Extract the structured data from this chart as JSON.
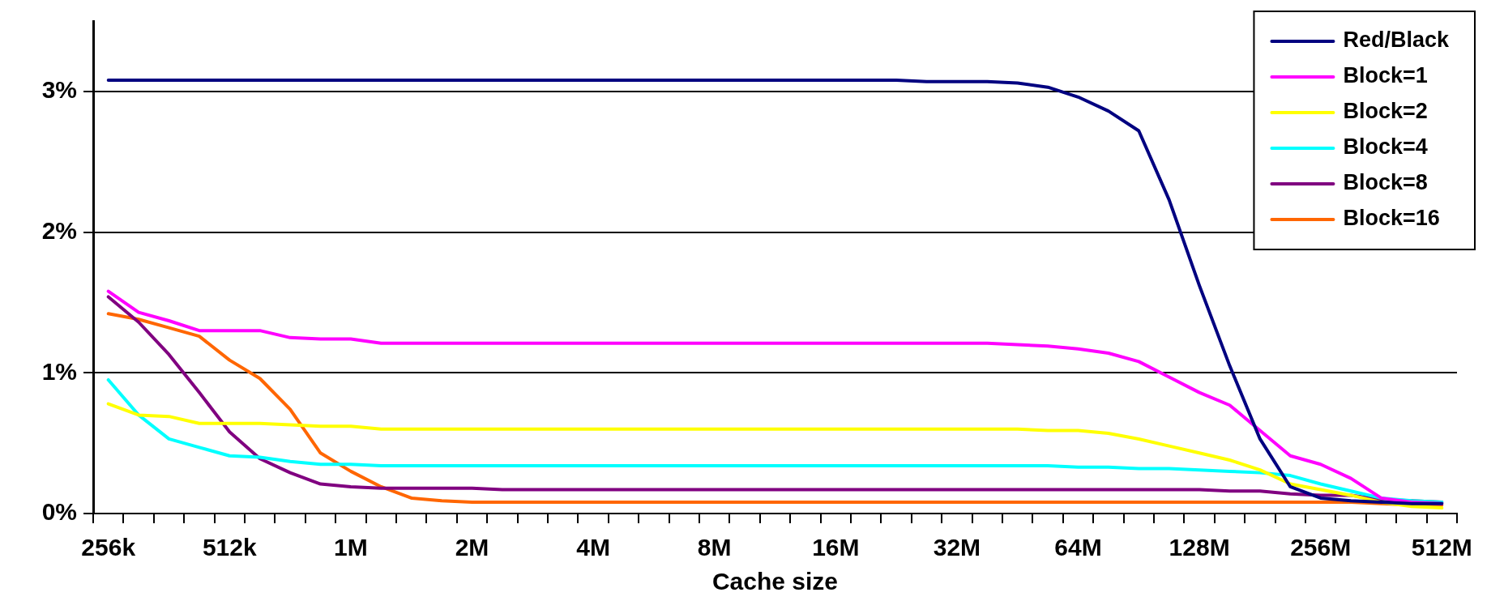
{
  "chart_data": {
    "type": "line",
    "xlabel": "Cache size",
    "categories": [
      "256k",
      null,
      null,
      null,
      "512k",
      null,
      null,
      null,
      "1M",
      null,
      null,
      null,
      "2M",
      null,
      null,
      null,
      "4M",
      null,
      null,
      null,
      "8M",
      null,
      null,
      null,
      "16M",
      null,
      null,
      null,
      "32M",
      null,
      null,
      null,
      "64M",
      null,
      null,
      null,
      "128M",
      null,
      null,
      null,
      "256M",
      null,
      null,
      null,
      "512M"
    ],
    "ylim": [
      0,
      3.5
    ],
    "yticks": [
      {
        "value": 0,
        "label": "0%"
      },
      {
        "value": 1,
        "label": "1%"
      },
      {
        "value": 2,
        "label": "2%"
      },
      {
        "value": 3,
        "label": "3%"
      }
    ],
    "grid": "y",
    "legend": "top right",
    "series": [
      {
        "name": "Red/Black",
        "color": "#000080",
        "values": [
          3.08,
          3.08,
          3.08,
          3.08,
          3.08,
          3.08,
          3.08,
          3.08,
          3.08,
          3.08,
          3.08,
          3.08,
          3.08,
          3.08,
          3.08,
          3.08,
          3.08,
          3.08,
          3.08,
          3.08,
          3.08,
          3.08,
          3.08,
          3.08,
          3.08,
          3.08,
          3.08,
          3.07,
          3.07,
          3.07,
          3.06,
          3.03,
          2.96,
          2.86,
          2.72,
          2.23,
          1.62,
          1.05,
          0.53,
          0.19,
          0.11,
          0.09,
          0.08,
          0.07,
          0.07
        ]
      },
      {
        "name": "Block=1",
        "color": "#ff00ff",
        "values": [
          1.58,
          1.43,
          1.37,
          1.3,
          1.3,
          1.3,
          1.25,
          1.24,
          1.24,
          1.21,
          1.21,
          1.21,
          1.21,
          1.21,
          1.21,
          1.21,
          1.21,
          1.21,
          1.21,
          1.21,
          1.21,
          1.21,
          1.21,
          1.21,
          1.21,
          1.21,
          1.21,
          1.21,
          1.21,
          1.21,
          1.2,
          1.19,
          1.17,
          1.14,
          1.08,
          0.97,
          0.86,
          0.77,
          0.59,
          0.41,
          0.35,
          0.25,
          0.11,
          0.08,
          0.07
        ]
      },
      {
        "name": "Block=2",
        "color": "#ffff00",
        "values": [
          0.78,
          0.7,
          0.69,
          0.64,
          0.64,
          0.64,
          0.63,
          0.62,
          0.62,
          0.6,
          0.6,
          0.6,
          0.6,
          0.6,
          0.6,
          0.6,
          0.6,
          0.6,
          0.6,
          0.6,
          0.6,
          0.6,
          0.6,
          0.6,
          0.6,
          0.6,
          0.6,
          0.6,
          0.6,
          0.6,
          0.6,
          0.59,
          0.59,
          0.57,
          0.53,
          0.48,
          0.43,
          0.38,
          0.31,
          0.21,
          0.17,
          0.13,
          0.08,
          0.05,
          0.04
        ]
      },
      {
        "name": "Block=4",
        "color": "#00ffff",
        "values": [
          0.95,
          0.7,
          0.53,
          0.47,
          0.41,
          0.4,
          0.37,
          0.35,
          0.35,
          0.34,
          0.34,
          0.34,
          0.34,
          0.34,
          0.34,
          0.34,
          0.34,
          0.34,
          0.34,
          0.34,
          0.34,
          0.34,
          0.34,
          0.34,
          0.34,
          0.34,
          0.34,
          0.34,
          0.34,
          0.34,
          0.34,
          0.34,
          0.33,
          0.33,
          0.32,
          0.32,
          0.31,
          0.3,
          0.29,
          0.27,
          0.21,
          0.16,
          0.11,
          0.09,
          0.08
        ]
      },
      {
        "name": "Block=8",
        "color": "#800080",
        "values": [
          1.54,
          1.36,
          1.13,
          0.86,
          0.58,
          0.39,
          0.29,
          0.21,
          0.19,
          0.18,
          0.18,
          0.18,
          0.18,
          0.17,
          0.17,
          0.17,
          0.17,
          0.17,
          0.17,
          0.17,
          0.17,
          0.17,
          0.17,
          0.17,
          0.17,
          0.17,
          0.17,
          0.17,
          0.17,
          0.17,
          0.17,
          0.17,
          0.17,
          0.17,
          0.17,
          0.17,
          0.17,
          0.16,
          0.16,
          0.14,
          0.13,
          0.13,
          0.1,
          0.09,
          0.08
        ]
      },
      {
        "name": "Block=16",
        "color": "#ff6600",
        "values": [
          1.42,
          1.38,
          1.32,
          1.26,
          1.09,
          0.96,
          0.74,
          0.43,
          0.3,
          0.19,
          0.11,
          0.09,
          0.08,
          0.08,
          0.08,
          0.08,
          0.08,
          0.08,
          0.08,
          0.08,
          0.08,
          0.08,
          0.08,
          0.08,
          0.08,
          0.08,
          0.08,
          0.08,
          0.08,
          0.08,
          0.08,
          0.08,
          0.08,
          0.08,
          0.08,
          0.08,
          0.08,
          0.08,
          0.08,
          0.08,
          0.08,
          0.08,
          0.07,
          0.06,
          0.06
        ]
      }
    ]
  }
}
